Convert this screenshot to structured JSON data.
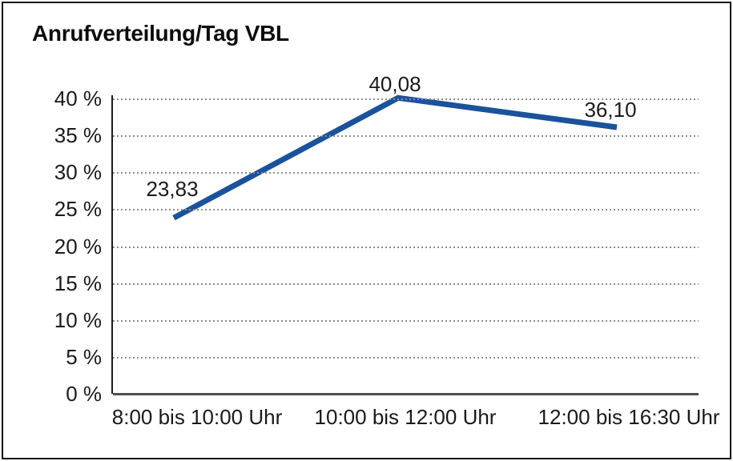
{
  "chart_data": {
    "type": "line",
    "title": "Anrufverteilung/Tag VBL",
    "categories": [
      "8:00 bis 10:00 Uhr",
      "10:00 bis 12:00 Uhr",
      "12:00 bis 16:30 Uhr"
    ],
    "values": [
      23.83,
      40.08,
      36.1
    ],
    "point_labels": [
      "23,83",
      "40,08",
      "36,10"
    ],
    "y_tick_labels": [
      "40 %",
      "35 %",
      "30 %",
      "25 %",
      "20 %",
      "15 %",
      "10 %",
      "5 %",
      "0 %"
    ],
    "xlabel": "",
    "ylabel": "",
    "ylim": [
      0,
      40
    ],
    "y_tick_step": 5,
    "grid": "horizontal-dotted",
    "legend": "none"
  },
  "colors": {
    "line": "#1a529c",
    "gridline": "#8c8c8c",
    "x_axis": "#4f4f4f",
    "y_axis": "#1c1c1c",
    "text": "#1a1a1a",
    "frame_border": "#141414",
    "background": "#ffffff"
  }
}
